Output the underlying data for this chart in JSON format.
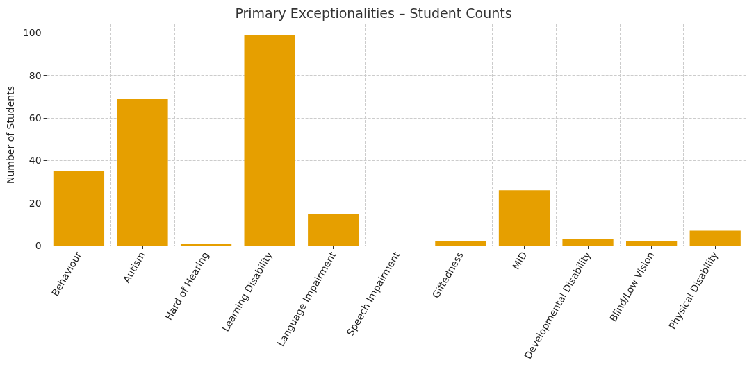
{
  "chart_data": {
    "type": "bar",
    "title": "Primary Exceptionalities – Student Counts",
    "ylabel": "Number of Students",
    "categories": [
      "Behaviour",
      "Autism",
      "Hard of Hearing",
      "Learning Disability",
      "Language Impairment",
      "Speech Impairment",
      "Giftedness",
      "MID",
      "Developmental Disability",
      "Blind/Low Vision",
      "Physical Disability"
    ],
    "values": [
      35,
      69,
      1,
      99,
      15,
      0,
      2,
      26,
      3,
      2,
      7
    ],
    "color": "#e69f00",
    "ylim": [
      0,
      104
    ],
    "yticks": [
      0,
      20,
      40,
      60,
      80,
      100
    ],
    "grid": true
  }
}
